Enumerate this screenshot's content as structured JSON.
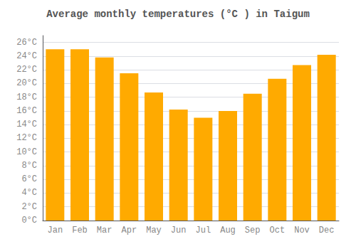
{
  "chart_data": {
    "type": "bar",
    "title": "Average monthly temperatures (°C ) in Taigum",
    "categories": [
      "Jan",
      "Feb",
      "Mar",
      "Apr",
      "May",
      "Jun",
      "Jul",
      "Aug",
      "Sep",
      "Oct",
      "Nov",
      "Dec"
    ],
    "values": [
      25.0,
      25.0,
      23.8,
      21.5,
      18.7,
      16.2,
      15.0,
      16.0,
      18.5,
      20.7,
      22.7,
      24.2
    ],
    "color": "#FFAA00",
    "ylim": [
      0,
      27
    ],
    "yticks": [
      {
        "value": 0,
        "label": "0°C"
      },
      {
        "value": 2,
        "label": "2°C"
      },
      {
        "value": 4,
        "label": "4°C"
      },
      {
        "value": 6,
        "label": "6°C"
      },
      {
        "value": 8,
        "label": "8°C"
      },
      {
        "value": 10,
        "label": "10°C"
      },
      {
        "value": 12,
        "label": "12°C"
      },
      {
        "value": 14,
        "label": "14°C"
      },
      {
        "value": 16,
        "label": "16°C"
      },
      {
        "value": 18,
        "label": "18°C"
      },
      {
        "value": 20,
        "label": "20°C"
      },
      {
        "value": 22,
        "label": "22°C"
      },
      {
        "value": 24,
        "label": "24°C"
      },
      {
        "value": 26,
        "label": "26°C"
      }
    ],
    "grid": true
  }
}
